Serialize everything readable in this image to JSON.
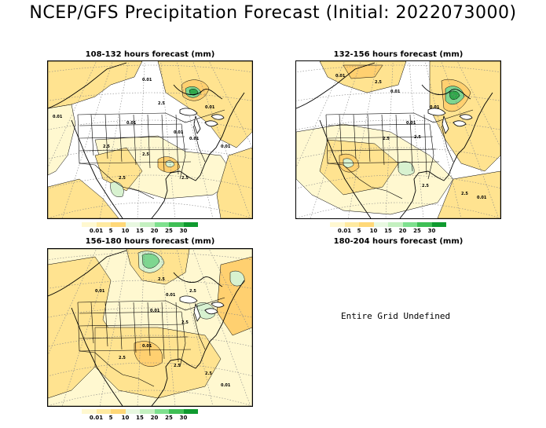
{
  "title": "NCEP/GFS Precipitation Forecast (Initial: 2022073000)",
  "panels": [
    {
      "title": "108-132 hours forecast (mm)"
    },
    {
      "title": "132-156 hours forecast (mm)"
    },
    {
      "title": "156-180 hours forecast (mm)"
    },
    {
      "title": "180-204 hours forecast (mm)",
      "message": "Entire Grid Undefined"
    }
  ],
  "legend": {
    "levels": [
      "0.01",
      "5",
      "10",
      "15",
      "20",
      "25",
      "30"
    ],
    "colors": [
      "#fff8d0",
      "#ffeaa0",
      "#ffd878",
      "#e8f8e0",
      "#c4f0c0",
      "#7ee08e",
      "#3fbf55",
      "#0f9a2f"
    ]
  },
  "colors": {
    "light": "#fff8d0",
    "yellow": "#ffe390",
    "gold": "#ffd070",
    "pale_green": "#d8f2d0",
    "green": "#7ed690",
    "dark_green": "#2fa84a"
  },
  "panel_labels": {
    "p1": [
      "0.01",
      "0.01",
      "2.5",
      "0.01",
      "0.01",
      "2.5",
      "0.01",
      "2.5",
      "0.01",
      "0.01",
      "2.5",
      "2.5"
    ],
    "p2": [
      "0.01",
      "2.5",
      "0.01",
      "0.01",
      "2.5",
      "2.5",
      "0.01",
      "2.5",
      "2.5",
      "0.01"
    ],
    "p3": [
      "0.01",
      "2.5",
      "0.01",
      "2.5",
      "0.01",
      "2.5",
      "0.01",
      "2.5",
      "2.5",
      "2.5",
      "0.01"
    ]
  }
}
